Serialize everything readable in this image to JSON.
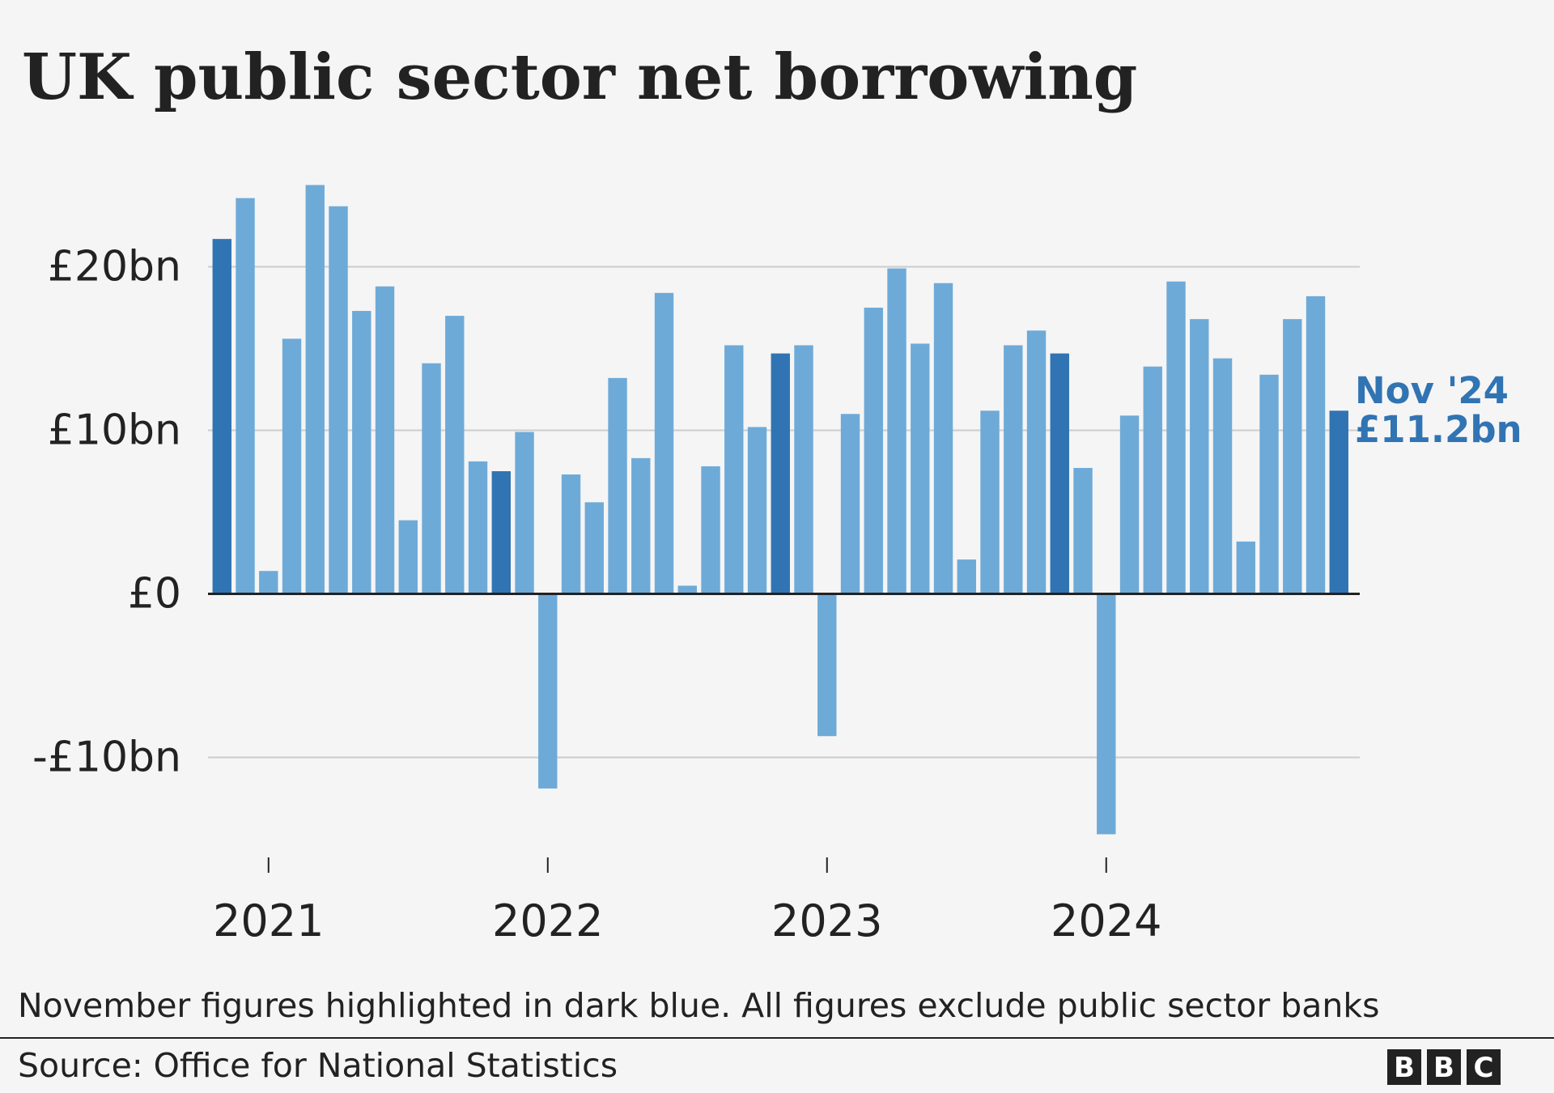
{
  "chart_data": {
    "type": "bar",
    "title": "UK public sector net borrowing",
    "categories": [
      null,
      null,
      "2021",
      null,
      null,
      null,
      null,
      null,
      null,
      null,
      null,
      null,
      null,
      null,
      "2022",
      null,
      null,
      null,
      null,
      null,
      null,
      null,
      null,
      null,
      null,
      null,
      "2023",
      null,
      null,
      null,
      null,
      null,
      null,
      null,
      null,
      null,
      null,
      null,
      "2024",
      null,
      null,
      null,
      null,
      null,
      null,
      null,
      null,
      null,
      null
    ],
    "values": [
      21.7,
      24.2,
      1.4,
      15.6,
      25.0,
      23.7,
      17.3,
      18.8,
      4.5,
      14.1,
      17.0,
      8.1,
      7.5,
      9.9,
      -11.9,
      7.3,
      5.6,
      13.2,
      8.3,
      18.4,
      0.5,
      7.8,
      15.2,
      10.2,
      14.7,
      15.2,
      -8.7,
      11.0,
      17.5,
      19.9,
      15.3,
      19.0,
      2.1,
      11.2,
      15.2,
      16.1,
      14.7,
      7.7,
      -14.7,
      10.9,
      13.9,
      19.1,
      16.8,
      14.4,
      3.2,
      13.4,
      16.8,
      18.2,
      11.2
    ],
    "colors": [
      "#3174b3",
      "#6eaad8",
      "#6eaad8",
      "#6eaad8",
      "#6eaad8",
      "#6eaad8",
      "#6eaad8",
      "#6eaad8",
      "#6eaad8",
      "#6eaad8",
      "#6eaad8",
      "#6eaad8",
      "#3174b3",
      "#6eaad8",
      "#6eaad8",
      "#6eaad8",
      "#6eaad8",
      "#6eaad8",
      "#6eaad8",
      "#6eaad8",
      "#6eaad8",
      "#6eaad8",
      "#6eaad8",
      "#6eaad8",
      "#3174b3",
      "#6eaad8",
      "#6eaad8",
      "#6eaad8",
      "#6eaad8",
      "#6eaad8",
      "#6eaad8",
      "#6eaad8",
      "#6eaad8",
      "#6eaad8",
      "#6eaad8",
      "#6eaad8",
      "#3174b3",
      "#6eaad8",
      "#6eaad8",
      "#6eaad8",
      "#6eaad8",
      "#6eaad8",
      "#6eaad8",
      "#6eaad8",
      "#6eaad8",
      "#6eaad8",
      "#6eaad8",
      "#6eaad8",
      "#3174b3"
    ],
    "ylim": [
      -15,
      25.5
    ],
    "yticks": [
      {
        "value": -10,
        "label": "-£10bn"
      },
      {
        "value": 0,
        "label": "£0"
      },
      {
        "value": 10,
        "label": "£10bn"
      },
      {
        "value": 20,
        "label": "£20bn"
      }
    ],
    "grid": true,
    "annotation": [
      "Nov '24",
      "£11.2bn"
    ],
    "note": "November figures highlighted in dark blue. All figures exclude public sector banks",
    "source": "Source: Office for National Statistics"
  }
}
